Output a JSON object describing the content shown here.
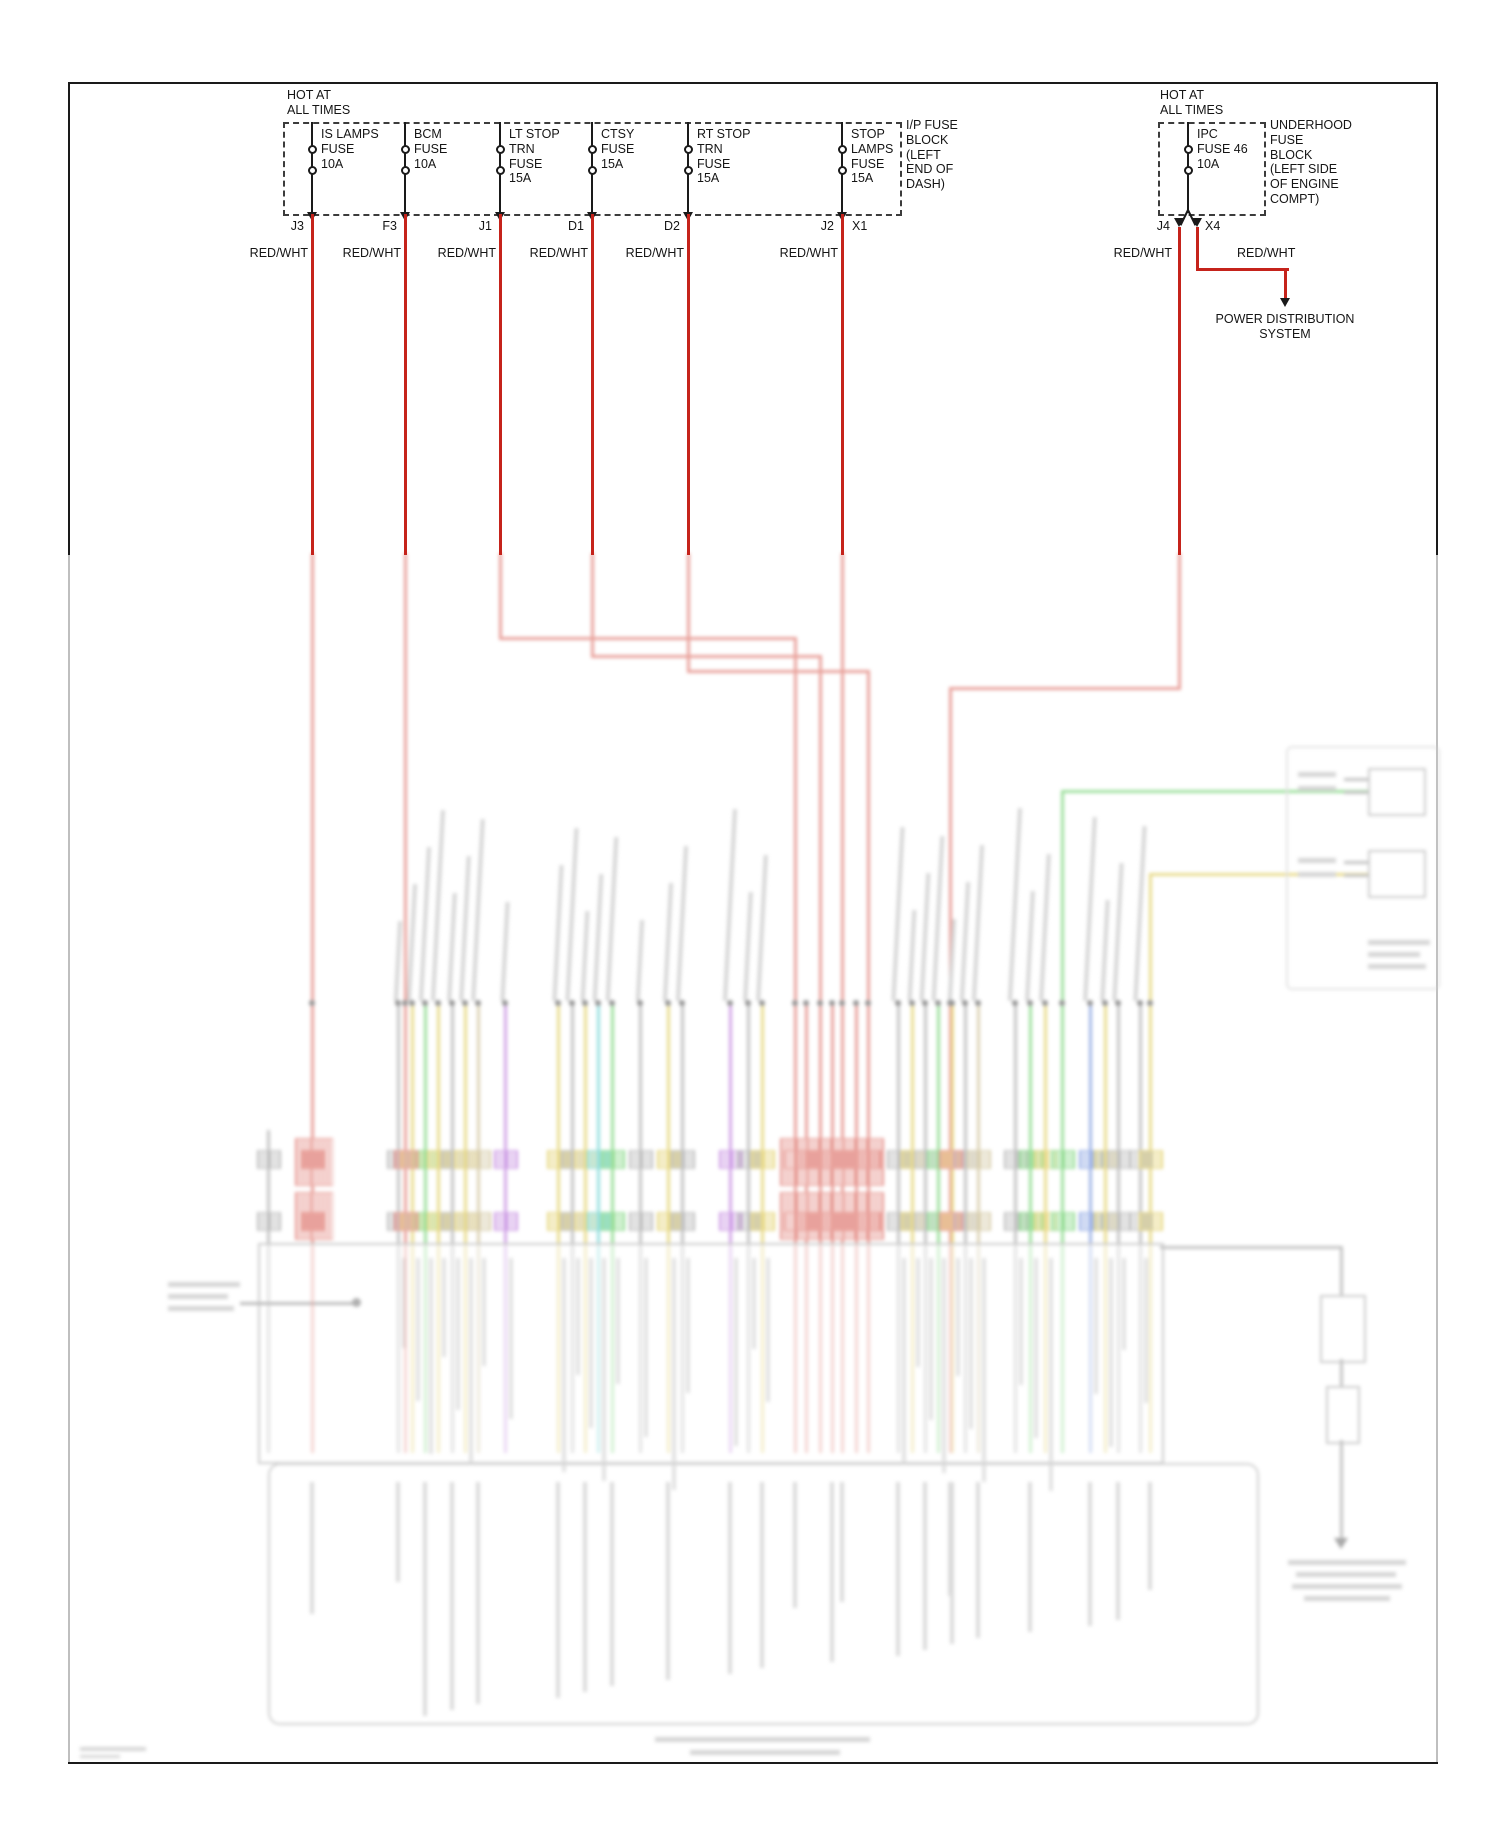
{
  "labels": {
    "hot_left": "HOT AT\nALL TIMES",
    "hot_right": "HOT AT\nALL TIMES"
  },
  "ip_fuse_block": {
    "label": "I/P FUSE\nBLOCK\n(LEFT\nEND OF\nDASH)",
    "fuses": [
      {
        "name": "IS LAMPS\nFUSE\n10A",
        "connector": "J3",
        "wire": "RED/WHT"
      },
      {
        "name": "BCM\nFUSE\n10A",
        "connector": "F3",
        "wire": "RED/WHT"
      },
      {
        "name": "LT STOP\nTRN\nFUSE\n15A",
        "connector": "J1",
        "wire": "RED/WHT"
      },
      {
        "name": "CTSY\nFUSE\n15A",
        "connector": "D1",
        "wire": "RED/WHT"
      },
      {
        "name": "RT STOP\nTRN\nFUSE\n15A",
        "connector": "D2",
        "wire": "RED/WHT"
      },
      {
        "name": "STOP\nLAMPS\nFUSE\n15A",
        "connector": "J2",
        "connector_right": "X1",
        "wire": "RED/WHT"
      }
    ]
  },
  "underhood_fuse_block": {
    "label": "UNDERHOOD\nFUSE\nBLOCK\n(LEFT SIDE\nOF ENGINE\nCOMPT)",
    "fuse_name": "IPC\nFUSE 46\n10A",
    "connector_left": "J4",
    "connector_right": "X4",
    "wire_left": "RED/WHT",
    "wire_right": "RED/WHT"
  },
  "power_distribution": {
    "label": "POWER DISTRIBUTION\nSYSTEM"
  },
  "colors": {
    "wire_red": "#c5231b",
    "faded_red": "#d95f55",
    "faded_green": "#57c957",
    "faded_yellow": "#d9c23e"
  }
}
